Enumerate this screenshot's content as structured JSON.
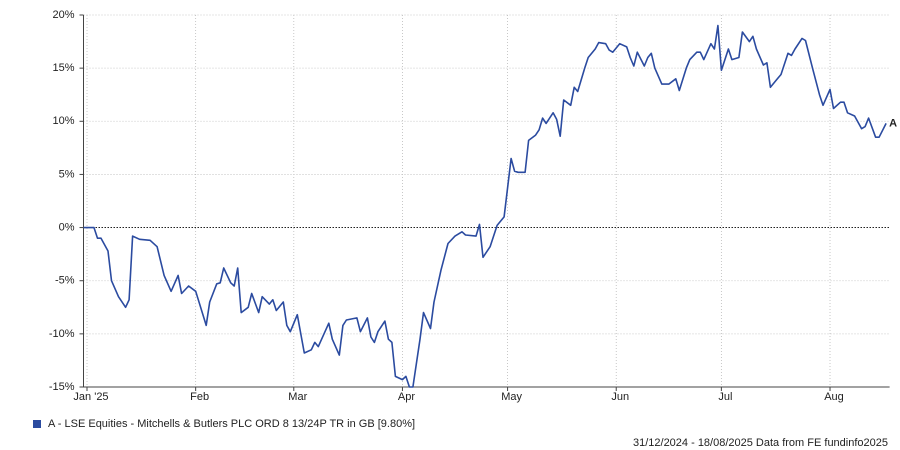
{
  "chart_data": {
    "type": "line",
    "x": [
      0,
      1,
      3,
      4,
      5,
      7,
      8,
      10,
      12,
      13,
      14,
      16,
      19,
      21,
      23,
      25,
      27,
      28,
      30,
      32,
      35,
      36,
      38,
      39,
      40,
      42,
      43,
      44,
      45,
      47,
      48,
      50,
      51,
      53,
      54,
      55,
      57,
      58,
      59,
      61,
      62,
      63,
      65,
      66,
      67,
      70,
      71,
      73,
      74,
      75,
      78,
      79,
      81,
      82,
      83,
      84,
      86,
      87,
      88,
      89,
      91,
      92,
      93,
      94,
      96,
      97,
      99,
      100,
      102,
      104,
      106,
      108,
      109,
      112,
      113,
      114,
      116,
      118,
      120,
      122,
      123,
      124,
      126,
      127,
      129,
      130,
      131,
      132,
      134,
      135,
      136,
      137,
      139,
      140,
      141,
      143,
      144,
      146,
      147,
      149,
      150,
      151,
      153,
      155,
      156,
      157,
      158,
      160,
      161,
      162,
      163,
      165,
      167,
      169,
      170,
      172,
      173,
      175,
      176,
      177,
      179,
      180,
      181,
      182,
      184,
      185,
      187,
      188,
      190,
      191,
      192,
      194,
      195,
      196,
      198,
      199,
      201,
      202,
      203,
      205,
      206,
      208,
      210,
      211,
      213,
      214,
      216,
      217,
      218,
      220,
      222,
      223,
      224,
      226,
      227,
      229
    ],
    "series": [
      {
        "name": "A - LSE Equities - Mitchells & Butlers PLC ORD 8 13/24P TR in GB [9.80%]",
        "color": "#2b4ba0",
        "values": [
          0,
          0,
          0,
          -1,
          -1,
          -2.2,
          -5,
          -6.5,
          -7.5,
          -6.8,
          -0.8,
          -1.1,
          -1.2,
          -1.8,
          -4.5,
          -6,
          -4.5,
          -6.2,
          -5.5,
          -6,
          -9.2,
          -7,
          -5.3,
          -5.2,
          -3.8,
          -5.2,
          -5.5,
          -3.8,
          -8,
          -7.5,
          -6.2,
          -8,
          -6.5,
          -7.2,
          -6.8,
          -7.8,
          -7,
          -9.2,
          -9.8,
          -8.2,
          -10,
          -11.8,
          -11.5,
          -10.8,
          -11.2,
          -9,
          -10.5,
          -12,
          -9.2,
          -8.7,
          -8.5,
          -9.8,
          -8.5,
          -10.3,
          -10.8,
          -9.8,
          -8.8,
          -10.5,
          -10.8,
          -14,
          -14.3,
          -14,
          -15,
          -15,
          -10.5,
          -8,
          -9.5,
          -7,
          -4,
          -1.5,
          -0.8,
          -0.4,
          -0.7,
          -0.8,
          0.3,
          -2.8,
          -1.8,
          0.2,
          1,
          6.5,
          5.3,
          5.2,
          5.2,
          8.2,
          8.7,
          9.2,
          10.3,
          9.8,
          10.8,
          10.2,
          8.6,
          12,
          11.5,
          13.2,
          12.8,
          15,
          16,
          16.8,
          17.4,
          17.3,
          16.7,
          16.5,
          17.3,
          17,
          16,
          15.2,
          16.5,
          15.2,
          16,
          16.4,
          15,
          13.5,
          13.5,
          14,
          12.9,
          15,
          15.8,
          16.5,
          16.5,
          15.8,
          17.3,
          16.8,
          19,
          14.8,
          16.8,
          15.8,
          16,
          18.4,
          17.5,
          18,
          16.8,
          15.3,
          15.5,
          13.2,
          14,
          14.4,
          16.4,
          16.2,
          16.8,
          17.8,
          17.6,
          15,
          12.5,
          11.5,
          13,
          11.2,
          11.8,
          11.8,
          10.8,
          10.5,
          9.3,
          9.5,
          10.3,
          8.5,
          8.5,
          9.8
        ]
      }
    ],
    "end_label": "A",
    "xlim": [
      0,
      230
    ],
    "xticks": [
      {
        "value": 1,
        "label": "Jan '25"
      },
      {
        "value": 32,
        "label": "Feb"
      },
      {
        "value": 60,
        "label": "Mar"
      },
      {
        "value": 91,
        "label": "Apr"
      },
      {
        "value": 121,
        "label": "May"
      },
      {
        "value": 152,
        "label": "Jun"
      },
      {
        "value": 182,
        "label": "Jul"
      },
      {
        "value": 213,
        "label": "Aug"
      }
    ],
    "ylim": [
      -15,
      20
    ],
    "yticks": [
      {
        "value": -15,
        "label": "-15%"
      },
      {
        "value": -10,
        "label": "-10%"
      },
      {
        "value": -5,
        "label": "-5%"
      },
      {
        "value": 0,
        "label": "0%"
      },
      {
        "value": 5,
        "label": "5%"
      },
      {
        "value": 10,
        "label": "10%"
      },
      {
        "value": 15,
        "label": "15%"
      },
      {
        "value": 20,
        "label": "20%"
      }
    ],
    "grid": true,
    "footer": "31/12/2024 - 18/08/2025 Data from FE fundinfo2025"
  }
}
